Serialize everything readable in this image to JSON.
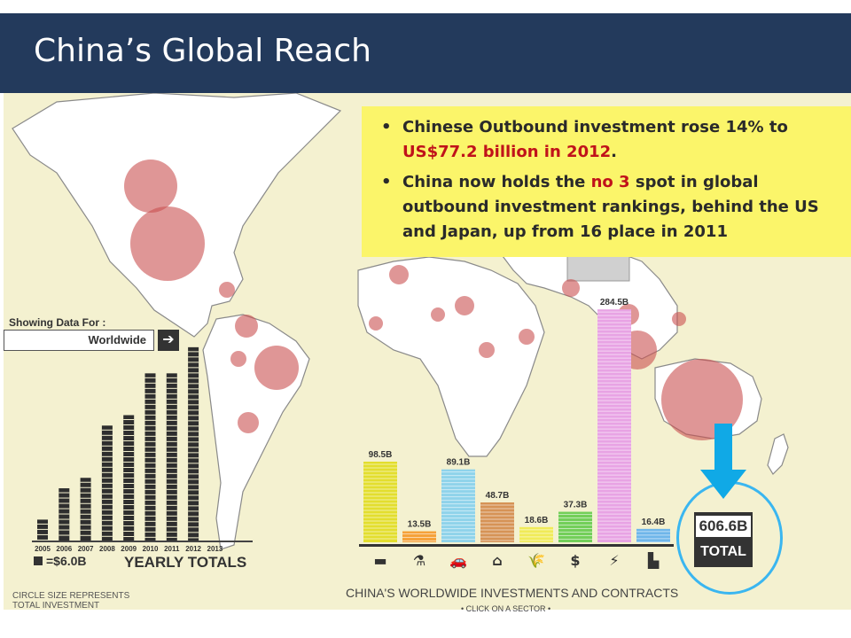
{
  "slide": {
    "title": "China’s Global Reach"
  },
  "callout": {
    "bullets": [
      {
        "pre": "Chinese Outbound investment rose 14% to ",
        "highlight": "US$77.2 billion in 2012",
        "post": "."
      },
      {
        "pre": "China now holds the ",
        "highlight": "no 3",
        "post": " spot in global outbound investment rankings, behind the US and Japan, up from 16 place in 2011"
      }
    ]
  },
  "selector": {
    "label": "Showing Data For :",
    "value": "Worldwide",
    "arrow_icon": "arrow-right-icon"
  },
  "notes": {
    "circle_size": "CIRCLE SIZE REPRESENTS TOTAL INVESTMENT"
  },
  "chart_data": [
    {
      "type": "bar",
      "title": "YEARLY TOTALS",
      "legend_key": "=$6.0B",
      "categories": [
        "2005",
        "2006",
        "2007",
        "2008",
        "2009",
        "2010",
        "2011",
        "2012",
        "2013"
      ],
      "values": [
        24,
        60,
        72,
        132,
        144,
        192,
        192,
        222,
        0
      ],
      "ylim": [
        0,
        230
      ]
    },
    {
      "type": "bar",
      "title": "CHINA'S WORLDWIDE INVESTMENTS AND CONTRACTS",
      "subtitle": "• CLICK ON A SECTOR •",
      "categories": [
        "metals",
        "chemicals",
        "transport",
        "real-estate",
        "agriculture",
        "finance",
        "energy",
        "other"
      ],
      "labels": [
        "98.5B",
        "13.5B",
        "89.1B",
        "48.7B",
        "18.6B",
        "37.3B",
        "284.5B",
        "16.4B"
      ],
      "values": [
        98.5,
        13.5,
        89.1,
        48.7,
        18.6,
        37.3,
        284.5,
        16.4
      ],
      "colors": [
        "#e3de2e",
        "#f5a23a",
        "#8fd3ea",
        "#d69356",
        "#f0eb58",
        "#73cf59",
        "#e8a3e4",
        "#6fb6ea"
      ],
      "icons": [
        "metal-bar-icon",
        "chemical-icon",
        "car-bus-icon",
        "house-icon",
        "wheat-icon",
        "dollar-icon",
        "lightning-icon",
        "factory-icon"
      ],
      "total_value": "606.6B",
      "total_label": "TOTAL"
    }
  ]
}
